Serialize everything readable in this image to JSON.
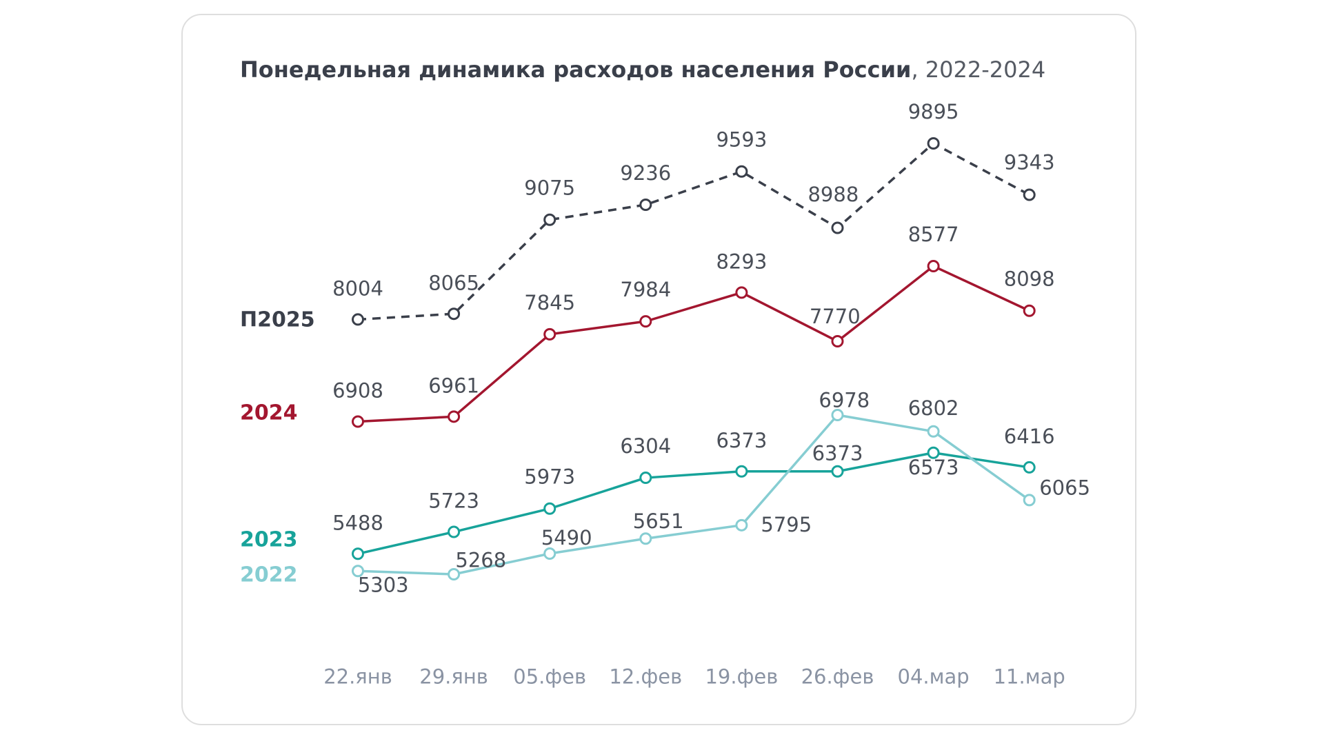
{
  "chart_data": {
    "type": "line",
    "title": "Понедельная динамика расходов населения России",
    "subtitle": ", 2022-2024",
    "categories": [
      "22.янв",
      "29.янв",
      "05.фев",
      "12.фев",
      "19.фев",
      "26.фев",
      "04.мар",
      "11.мар"
    ],
    "series": [
      {
        "name": "П2025",
        "color": "#3a3f4a",
        "dashed": true,
        "values": [
          8004,
          8065,
          9075,
          9236,
          9593,
          8988,
          9895,
          9343
        ]
      },
      {
        "name": "2024",
        "color": "#a3162f",
        "values": [
          6908,
          6961,
          7845,
          7984,
          8293,
          7770,
          8577,
          8098
        ]
      },
      {
        "name": "2023",
        "color": "#17a39a",
        "values": [
          5488,
          5723,
          5973,
          6304,
          6373,
          6373,
          6573,
          6416
        ]
      },
      {
        "name": "2022",
        "color": "#86cdd2",
        "values": [
          5303,
          5268,
          5490,
          5651,
          5795,
          6978,
          6802,
          6065
        ]
      }
    ]
  }
}
